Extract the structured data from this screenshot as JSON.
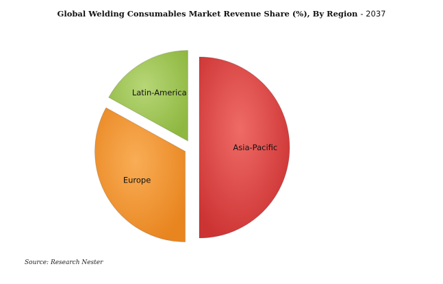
{
  "chart_data": {
    "type": "pie",
    "title": "Global Welding Consumables Market Revenue Share (%), By Region",
    "title_suffix": "- 2037",
    "slices": [
      {
        "label": "Asia-Pacific",
        "value": 50,
        "color": "#cc3333",
        "color_light": "#ef6b66"
      },
      {
        "label": "Europe",
        "value": 33,
        "color": "#e8851f",
        "color_light": "#f9ad56"
      },
      {
        "label": "Latin-America",
        "value": 17,
        "color": "#8fb841",
        "color_light": "#b7d677"
      }
    ],
    "exploded": true
  },
  "source": "Source: Research Nester"
}
